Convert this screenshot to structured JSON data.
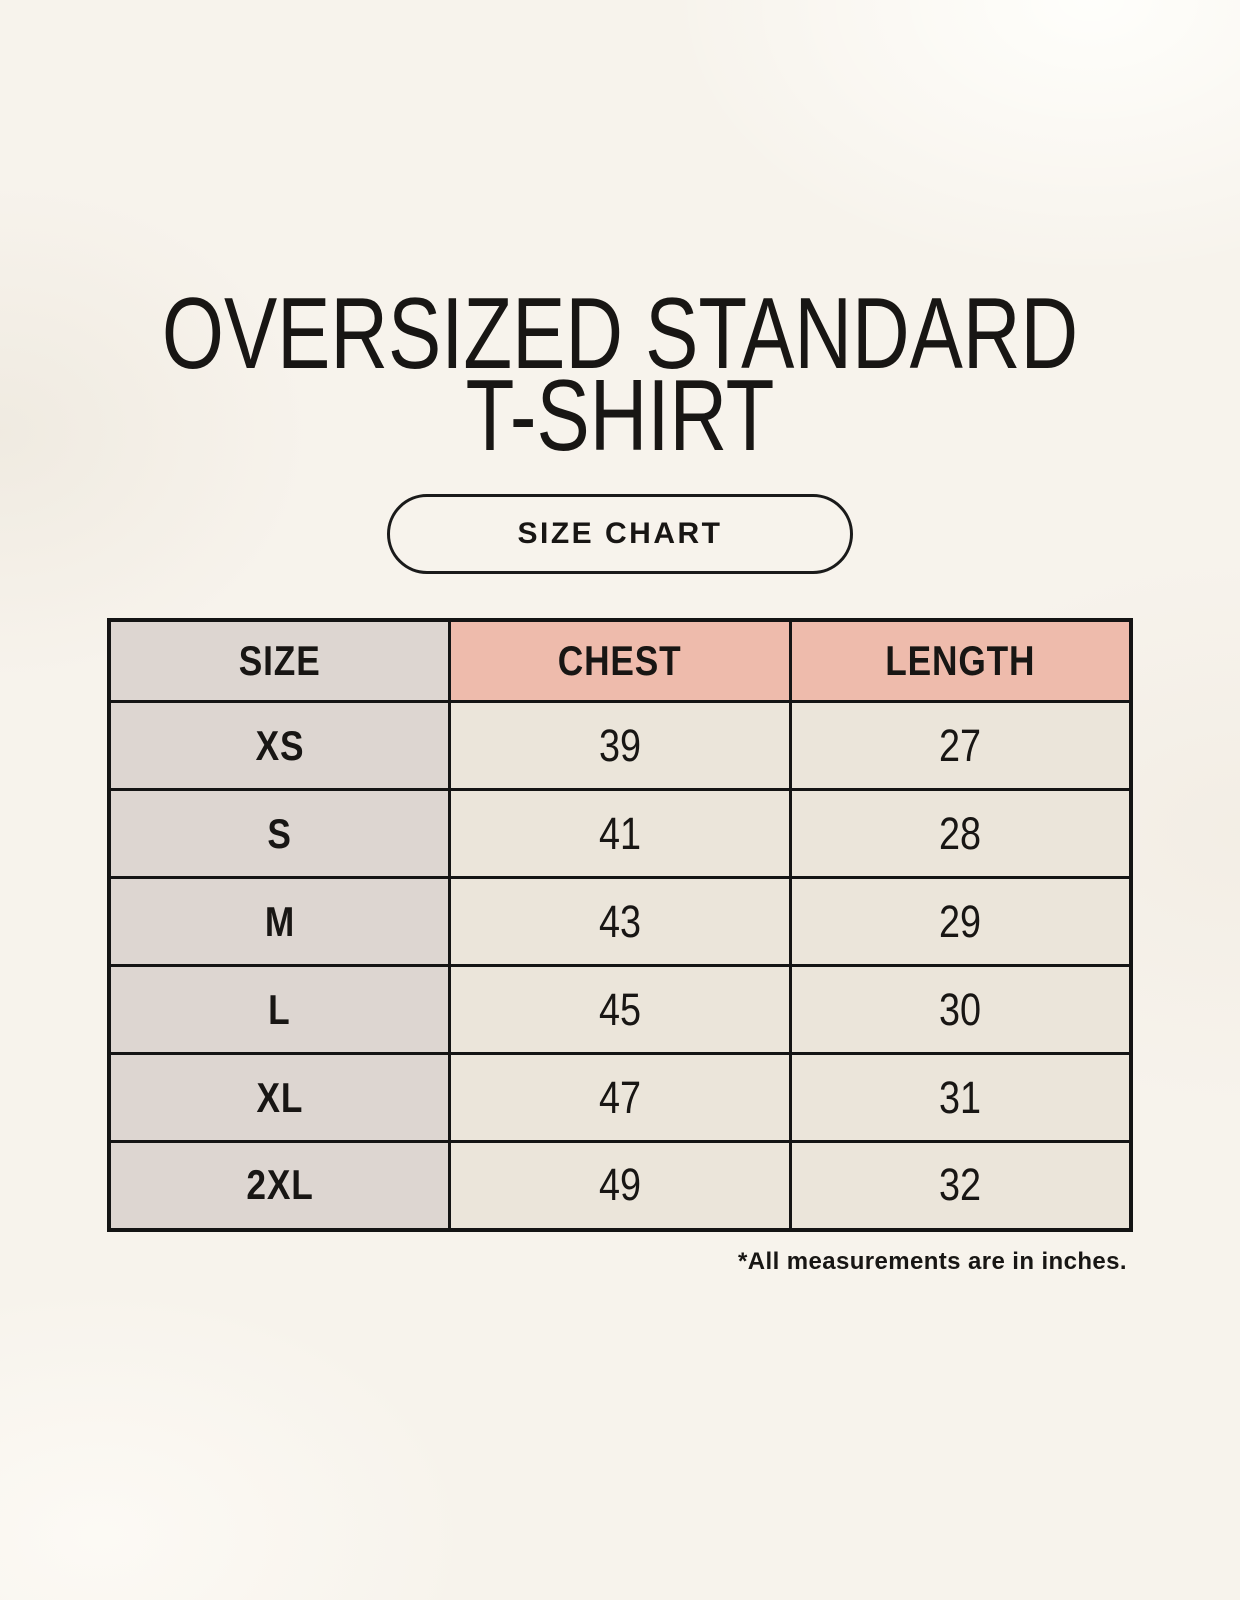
{
  "header": {
    "title_line1": "OVERSIZED STANDARD",
    "title_line2": "T-SHIRT",
    "badge_label": "SIZE CHART"
  },
  "chart_data": {
    "type": "table",
    "title": "OVERSIZED STANDARD T-SHIRT",
    "columns": [
      "SIZE",
      "CHEST",
      "LENGTH"
    ],
    "rows": [
      [
        "XS",
        39,
        27
      ],
      [
        "S",
        41,
        28
      ],
      [
        "M",
        43,
        29
      ],
      [
        "L",
        45,
        30
      ],
      [
        "XL",
        47,
        31
      ],
      [
        "2XL",
        49,
        32
      ]
    ],
    "units": "inches"
  },
  "footer": {
    "note": "*All measurements are in inches."
  },
  "colors": {
    "background": "#f7f3ec",
    "size_column_bg": "#ddd6d1",
    "header_accent_bg": "#eebbac",
    "data_cell_bg": "#ebe5da",
    "border": "#141414",
    "text": "#181614"
  }
}
